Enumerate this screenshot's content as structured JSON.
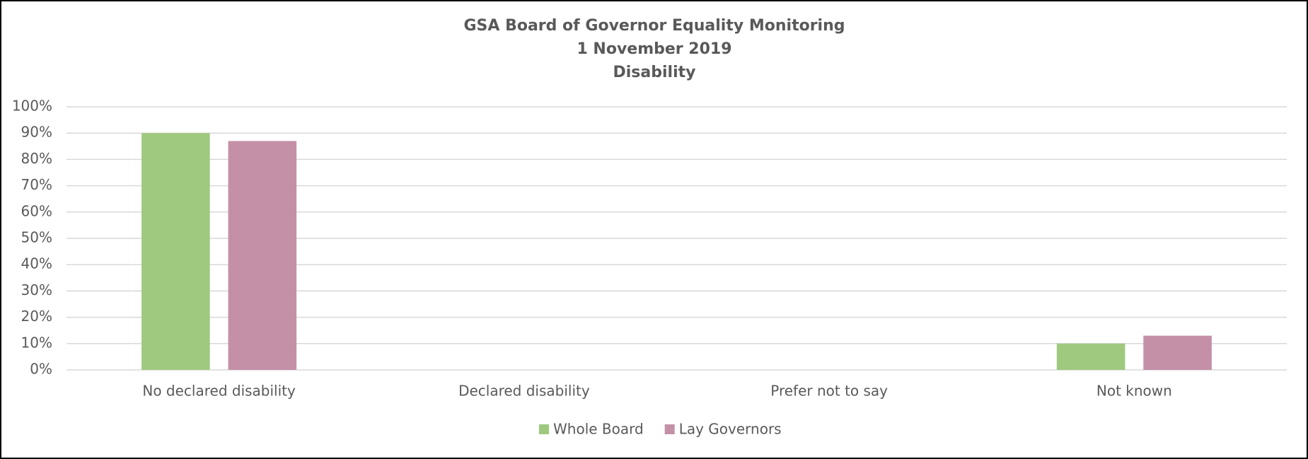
{
  "chart_data": {
    "type": "bar",
    "title": [
      "GSA Board of Governor Equality Monitoring",
      "1 November 2019",
      "Disability"
    ],
    "categories": [
      "No declared disability",
      "Declared disability",
      "Prefer not to say",
      "Not known"
    ],
    "series": [
      {
        "name": "Whole Board",
        "color": "#9fc97f",
        "values": [
          90,
          0,
          0,
          10
        ]
      },
      {
        "name": "Lay Governors",
        "color": "#c490a8",
        "values": [
          87,
          0,
          0,
          13
        ]
      }
    ],
    "ylim": [
      0,
      100
    ],
    "yticks": [
      {
        "value": 0,
        "label": "0%"
      },
      {
        "value": 10,
        "label": "10%"
      },
      {
        "value": 20,
        "label": "20%"
      },
      {
        "value": 30,
        "label": "30%"
      },
      {
        "value": 40,
        "label": "40%"
      },
      {
        "value": 50,
        "label": "50%"
      },
      {
        "value": 60,
        "label": "60%"
      },
      {
        "value": 70,
        "label": "70%"
      },
      {
        "value": 80,
        "label": "80%"
      },
      {
        "value": 90,
        "label": "90%"
      },
      {
        "value": 100,
        "label": "100%"
      }
    ],
    "grid": true,
    "legend": "bottom"
  }
}
